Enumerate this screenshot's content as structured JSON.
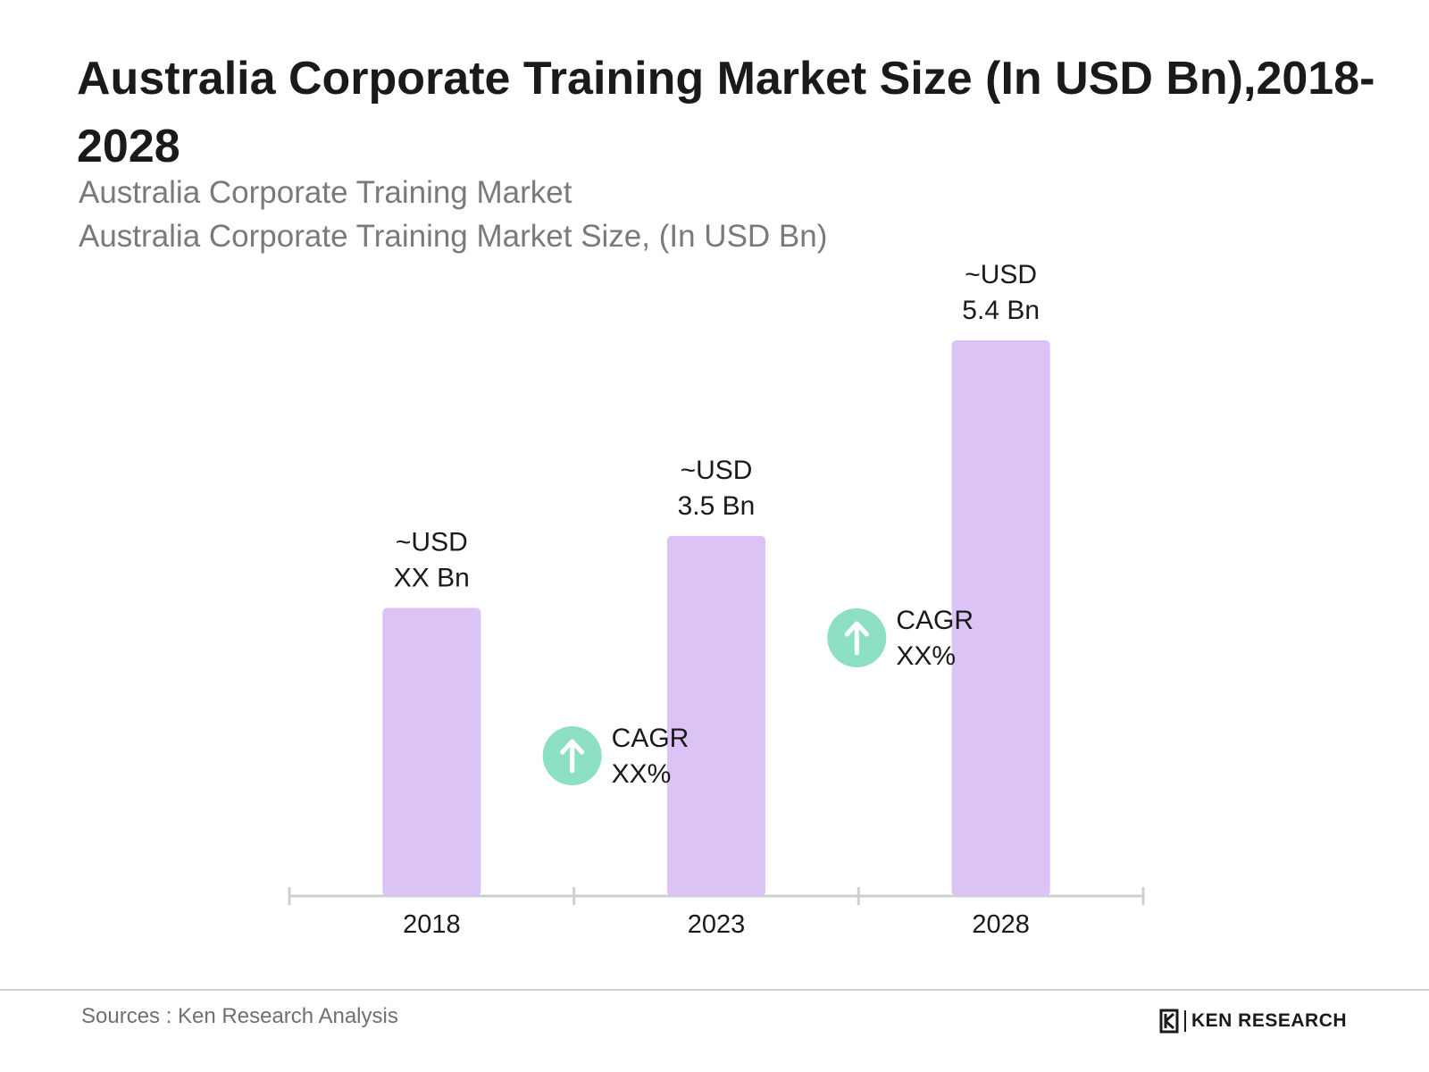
{
  "header": {
    "title": "Australia Corporate Training Market Size (In USD Bn),2018-2028",
    "subtitle_1": "Australia Corporate Training Market",
    "subtitle_2": "Australia Corporate Training Market Size, (In USD Bn)"
  },
  "chart_data": {
    "type": "bar",
    "categories": [
      "2018",
      "2023",
      "2028"
    ],
    "values": [
      2.8,
      3.5,
      5.4
    ],
    "value_labels": [
      [
        "~USD",
        "XX Bn"
      ],
      [
        "~USD",
        "3.5 Bn"
      ],
      [
        "~USD",
        "5.4 Bn"
      ]
    ],
    "ylim": [
      0,
      5.4
    ],
    "grid": false,
    "bar_color": "#dcc3f6",
    "cagr_annotations": [
      {
        "between": [
          "2018",
          "2023"
        ],
        "lines": [
          "CAGR",
          "XX%"
        ],
        "icon": "arrow-up-icon"
      },
      {
        "between": [
          "2023",
          "2028"
        ],
        "lines": [
          "CAGR",
          "XX%"
        ],
        "icon": "arrow-up-icon"
      }
    ],
    "cagr_icon_color": "#8ee0c2"
  },
  "footer": {
    "source": "Sources : Ken Research Analysis",
    "logo_text": "KEN RESEARCH"
  }
}
